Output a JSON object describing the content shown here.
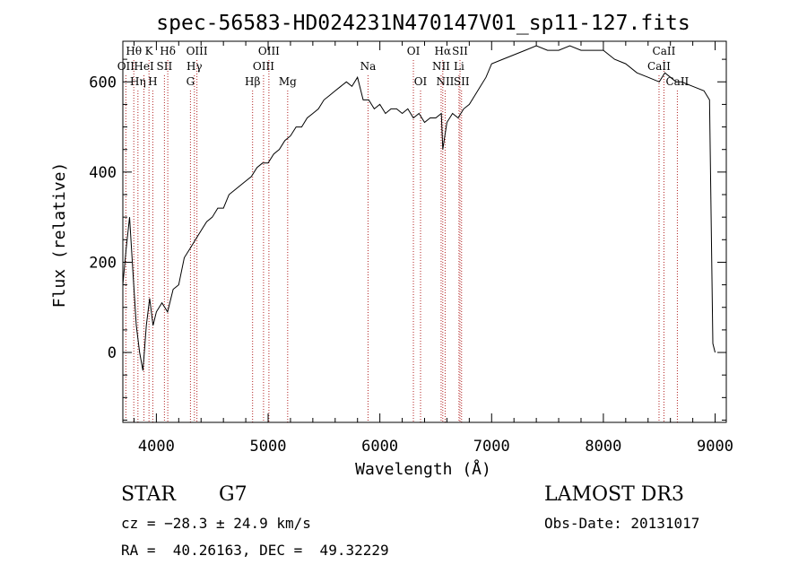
{
  "chart_data": {
    "type": "line",
    "title": "spec-56583-HD024231N470147V01_sp11-127.fits",
    "xlabel": "Wavelength (Å)",
    "ylabel": "Flux (relative)",
    "xlim": [
      3700,
      9100
    ],
    "ylim": [
      -155,
      690
    ],
    "xticks": [
      4000,
      5000,
      6000,
      7000,
      8000,
      9000
    ],
    "yticks": [
      0,
      200,
      400,
      600
    ],
    "grid": false,
    "series": [
      {
        "x": [
          3700,
          3730,
          3760,
          3790,
          3820,
          3850,
          3880,
          3910,
          3940,
          3970,
          4000,
          4050,
          4100,
          4150,
          4200,
          4250,
          4300,
          4350,
          4400,
          4450,
          4500,
          4550,
          4600,
          4650,
          4700,
          4750,
          4800,
          4850,
          4900,
          4950,
          5000,
          5050,
          5100,
          5150,
          5200,
          5250,
          5300,
          5350,
          5400,
          5450,
          5500,
          5550,
          5600,
          5650,
          5700,
          5750,
          5800,
          5850,
          5900,
          5950,
          6000,
          6050,
          6100,
          6150,
          6200,
          6250,
          6300,
          6350,
          6400,
          6450,
          6500,
          6550,
          6563,
          6600,
          6650,
          6700,
          6750,
          6800,
          6850,
          6900,
          6950,
          7000,
          7100,
          7200,
          7300,
          7400,
          7500,
          7600,
          7700,
          7800,
          7900,
          8000,
          8100,
          8200,
          8300,
          8400,
          8500,
          8550,
          8600,
          8650,
          8700,
          8800,
          8900,
          8950,
          8980,
          9000
        ],
        "y": [
          150,
          230,
          300,
          180,
          60,
          0,
          -40,
          60,
          120,
          60,
          90,
          110,
          90,
          140,
          150,
          210,
          230,
          250,
          270,
          290,
          300,
          320,
          320,
          350,
          360,
          370,
          380,
          390,
          410,
          420,
          420,
          440,
          450,
          470,
          480,
          500,
          500,
          520,
          530,
          540,
          560,
          570,
          580,
          590,
          600,
          590,
          610,
          560,
          560,
          540,
          550,
          530,
          540,
          540,
          530,
          540,
          520,
          530,
          510,
          520,
          520,
          530,
          450,
          510,
          530,
          520,
          540,
          550,
          570,
          590,
          610,
          640,
          650,
          660,
          670,
          680,
          670,
          670,
          680,
          670,
          670,
          670,
          650,
          640,
          620,
          610,
          600,
          620,
          610,
          600,
          600,
          590,
          580,
          560,
          20,
          0
        ]
      }
    ],
    "line_markers": [
      {
        "label": "Hθ",
        "wavelength": 3798,
        "row": 0
      },
      {
        "label": "OII",
        "wavelength": 3727,
        "row": 1
      },
      {
        "label": "Hη",
        "wavelength": 3835,
        "row": 2
      },
      {
        "label": "K",
        "wavelength": 3934,
        "row": 0
      },
      {
        "label": "HeI",
        "wavelength": 3889,
        "row": 1
      },
      {
        "label": "H",
        "wavelength": 3968,
        "row": 2
      },
      {
        "label": "Hδ",
        "wavelength": 4102,
        "row": 0
      },
      {
        "label": "SII",
        "wavelength": 4072,
        "row": 1
      },
      {
        "label": "OIII",
        "wavelength": 4363,
        "row": 0
      },
      {
        "label": "Hγ",
        "wavelength": 4340,
        "row": 1
      },
      {
        "label": "G",
        "wavelength": 4305,
        "row": 2
      },
      {
        "label": "Hβ",
        "wavelength": 4861,
        "row": 2
      },
      {
        "label": "OIII",
        "wavelength": 5007,
        "row": 0
      },
      {
        "label": "OIII",
        "wavelength": 4959,
        "row": 1
      },
      {
        "label": "Mg",
        "wavelength": 5175,
        "row": 2
      },
      {
        "label": "Na",
        "wavelength": 5894,
        "row": 1
      },
      {
        "label": "OI",
        "wavelength": 6300,
        "row": 0
      },
      {
        "label": "OI",
        "wavelength": 6364,
        "row": 2
      },
      {
        "label": "Hα",
        "wavelength": 6563,
        "row": 0
      },
      {
        "label": "NII",
        "wavelength": 6548,
        "row": 1
      },
      {
        "label": "NII",
        "wavelength": 6584,
        "row": 2
      },
      {
        "label": "SII",
        "wavelength": 6717,
        "row": 0
      },
      {
        "label": "Li",
        "wavelength": 6708,
        "row": 1
      },
      {
        "label": "SII",
        "wavelength": 6731,
        "row": 2
      },
      {
        "label": "CaII",
        "wavelength": 8542,
        "row": 0
      },
      {
        "label": "CaII",
        "wavelength": 8498,
        "row": 1
      },
      {
        "label": "CaII",
        "wavelength": 8662,
        "row": 2
      }
    ]
  },
  "info": {
    "object_class": "STAR",
    "subclass": "G7",
    "survey": "LAMOST DR3",
    "cz": "cz = −28.3 ± 24.9 km/s",
    "obs_date": "Obs-Date: 20131017",
    "coords": "RA =  40.26163, DEC =  49.32229"
  },
  "colors": {
    "spectrum": "#000000",
    "marker": "#b22222",
    "axis": "#000000"
  }
}
